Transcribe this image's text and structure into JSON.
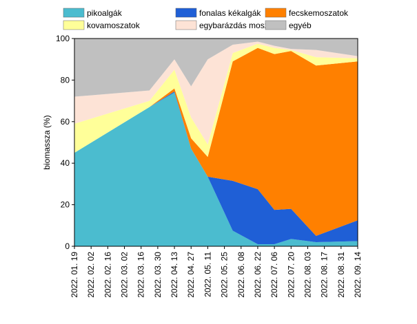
{
  "chart_data": {
    "type": "stacked_area",
    "y_label": "biomassza (%)",
    "x": [
      0,
      63,
      84,
      98,
      112,
      133,
      154,
      168,
      182,
      203,
      238
    ],
    "xlim": [
      0,
      238
    ],
    "xticks": [
      {
        "value": 0,
        "label": "2022. 01. 19"
      },
      {
        "value": 14,
        "label": "2022. 02. 02"
      },
      {
        "value": 28,
        "label": "2022. 02. 16"
      },
      {
        "value": 42,
        "label": "2022. 03. 02"
      },
      {
        "value": 56,
        "label": "2022. 03. 16"
      },
      {
        "value": 70,
        "label": "2022. 03. 30"
      },
      {
        "value": 84,
        "label": "2022. 04. 13"
      },
      {
        "value": 98,
        "label": "2022. 04. 27"
      },
      {
        "value": 112,
        "label": "2022. 05. 11"
      },
      {
        "value": 126,
        "label": "2022. 05. 25"
      },
      {
        "value": 140,
        "label": "2022. 06. 08"
      },
      {
        "value": 154,
        "label": "2022. 06. 22"
      },
      {
        "value": 168,
        "label": "2022. 07. 06"
      },
      {
        "value": 182,
        "label": "2022. 07. 20"
      },
      {
        "value": 196,
        "label": "2022. 08. 03"
      },
      {
        "value": 210,
        "label": "2022. 08. 17"
      },
      {
        "value": 224,
        "label": "2022. 08. 31"
      },
      {
        "value": 238,
        "label": "2022. 09. 14"
      }
    ],
    "ylim": [
      0,
      100
    ],
    "yticks": [
      0,
      20,
      40,
      60,
      80,
      100
    ],
    "series": [
      {
        "name": "pikoalgák",
        "color": "#4bbccf",
        "values": [
          45,
          67,
          74,
          47,
          33.5,
          7.5,
          1,
          1,
          3.5,
          2,
          2.5
        ]
      },
      {
        "name": "fonalas kékalgák",
        "color": "#1f5fd6",
        "values": [
          0,
          0,
          0.5,
          0,
          0,
          24,
          26.5,
          16.5,
          14.5,
          3,
          10
        ]
      },
      {
        "name": "fecskemoszatok",
        "color": "#ff8000",
        "values": [
          0,
          0,
          1.5,
          5,
          9.5,
          57.5,
          68,
          75,
          76,
          82,
          76.5
        ]
      },
      {
        "name": "kovamoszatok",
        "color": "#ffff99",
        "values": [
          14,
          3,
          9,
          10,
          6,
          4,
          2,
          3,
          0.5,
          4,
          1.5
        ]
      },
      {
        "name": "egybarázdás moszatok",
        "color": "#fde3d6",
        "values": [
          13,
          5,
          5,
          15,
          41,
          4,
          1,
          1,
          0.5,
          3.5,
          1
        ]
      },
      {
        "name": "egyéb",
        "color": "#c0c0c0",
        "values": [
          28,
          25,
          10,
          23,
          10,
          3,
          1.5,
          3.5,
          5,
          5.5,
          8.5
        ]
      }
    ]
  }
}
